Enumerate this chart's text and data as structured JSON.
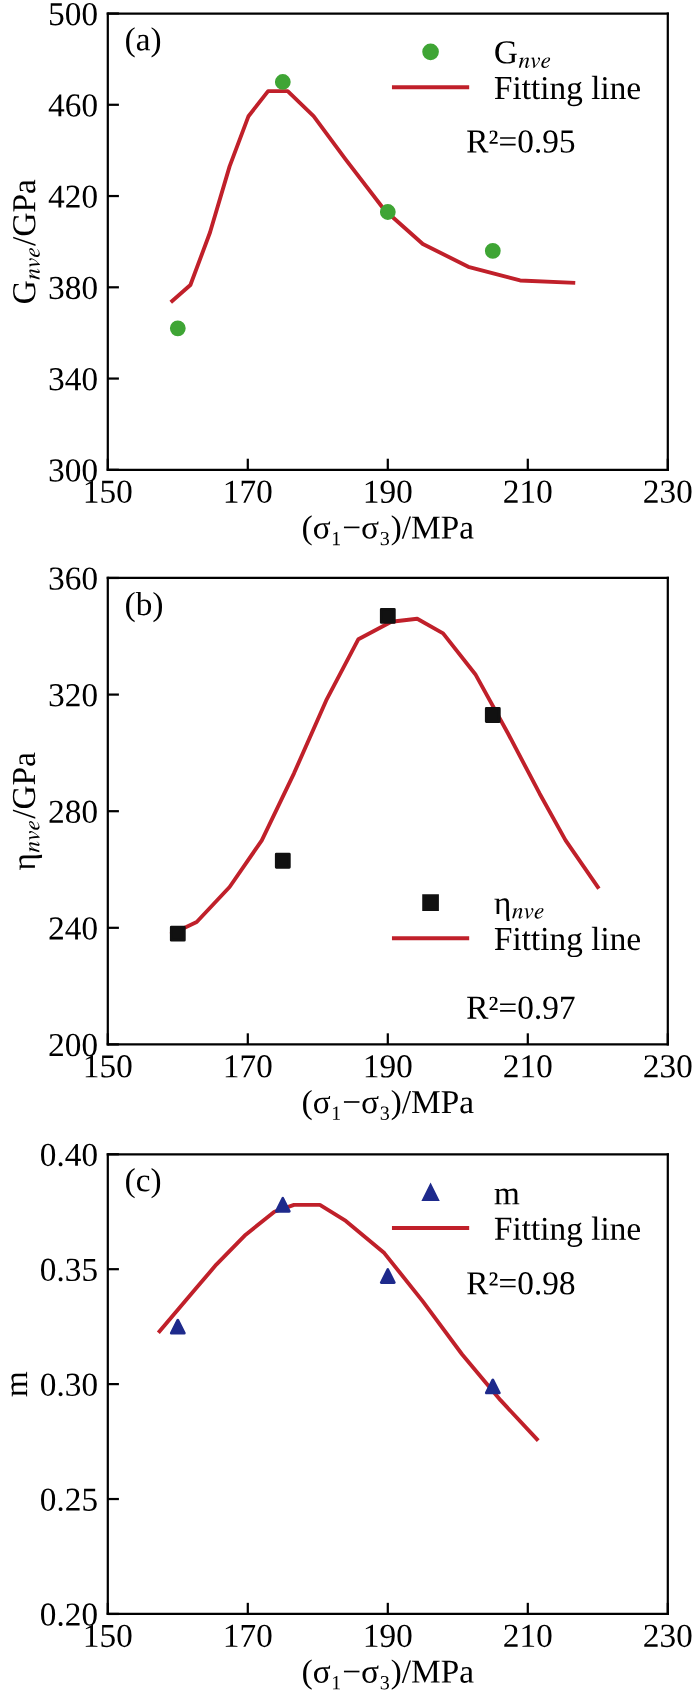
{
  "chart_data": [
    {
      "type": "scatter",
      "xlabel": "(σ₁−σ₃)/MPa",
      "ylabel": "G$_{nve}$/GPa",
      "xlim": [
        150,
        230
      ],
      "xticks": [
        150,
        170,
        190,
        210,
        230
      ],
      "ylim": [
        300,
        500
      ],
      "yticks": [
        300,
        340,
        380,
        420,
        460,
        500
      ],
      "legend": "top right",
      "grid": false,
      "annotations": [
        "(a)",
        "R²=0.95"
      ],
      "series": [
        {
          "name": "G$_{nve}$",
          "marker": "circle",
          "color": "#3fa535",
          "x": [
            160,
            175,
            190,
            205
          ],
          "values": [
            362,
            470,
            413,
            396
          ]
        },
        {
          "name": "Fitting line",
          "type": "line",
          "marker": "none",
          "line_style": "solid",
          "color": "#c0202a",
          "x": [
            159.2,
            161.8,
            164.6,
            167.4,
            170.1,
            172.9,
            175.7,
            179.4,
            184,
            189.5,
            195,
            201.5,
            208.9,
            216.5
          ],
          "values": [
            374,
            381,
            404,
            433,
            455,
            466,
            466,
            455,
            436,
            414,
            399,
            389,
            383,
            382
          ]
        }
      ]
    },
    {
      "type": "scatter",
      "xlabel": "(σ₁−σ₃)/MPa",
      "ylabel": "η$_{nve}$/GPa",
      "xlim": [
        150,
        230
      ],
      "xticks": [
        150,
        170,
        190,
        210,
        230
      ],
      "ylim": [
        200,
        360
      ],
      "yticks": [
        200,
        240,
        280,
        320,
        360
      ],
      "legend": "bottom right",
      "grid": false,
      "annotations": [
        "(b)",
        "R²=0.97"
      ],
      "series": [
        {
          "name": "η$_{nve}$",
          "marker": "square",
          "color": "#111111",
          "x": [
            160,
            175,
            190,
            205
          ],
          "values": [
            238,
            263,
            347,
            313
          ]
        },
        {
          "name": "Fitting line",
          "type": "line",
          "marker": "none",
          "line_style": "solid",
          "color": "#c0202a",
          "x": [
            159.2,
            162.7,
            167.4,
            172,
            176.6,
            181.2,
            185.8,
            190.5,
            194.2,
            197.9,
            202.5,
            207.1,
            211.7,
            215.4,
            220
          ],
          "values": [
            238,
            242,
            254,
            270,
            293,
            318,
            339,
            345,
            346,
            341,
            327,
            307,
            286,
            270,
            254
          ]
        }
      ]
    },
    {
      "type": "scatter",
      "xlabel": "(σ₁−σ₃)/MPa",
      "ylabel": "m",
      "xlim": [
        150,
        230
      ],
      "xticks": [
        150,
        170,
        190,
        210,
        230
      ],
      "ylim": [
        0.2,
        0.4
      ],
      "yticks": [
        {
          "value": 0.2,
          "label": "0.20"
        },
        {
          "value": 0.25,
          "label": "0.25"
        },
        {
          "value": 0.3,
          "label": "0.30"
        },
        {
          "value": 0.35,
          "label": "0.35"
        },
        {
          "value": 0.4,
          "label": "0.40"
        }
      ],
      "legend": "top right",
      "grid": false,
      "annotations": [
        "(c)",
        "R²=0.98"
      ],
      "series": [
        {
          "name": "m",
          "marker": "triangle",
          "color": "#1e2a8c",
          "x": [
            160,
            175,
            190,
            205
          ],
          "values": [
            0.325,
            0.378,
            0.347,
            0.299
          ]
        },
        {
          "name": "Fitting line",
          "type": "line",
          "marker": "none",
          "line_style": "solid",
          "color": "#c0202a",
          "x": [
            157.4,
            162.7,
            165.5,
            169.7,
            173.8,
            176.6,
            180.3,
            184,
            189.5,
            195,
            200.6,
            206.1,
            211.3
          ],
          "values": [
            0.323,
            0.342,
            0.352,
            0.365,
            0.375,
            0.378,
            0.378,
            0.371,
            0.357,
            0.336,
            0.313,
            0.293,
            0.276
          ]
        }
      ]
    }
  ]
}
